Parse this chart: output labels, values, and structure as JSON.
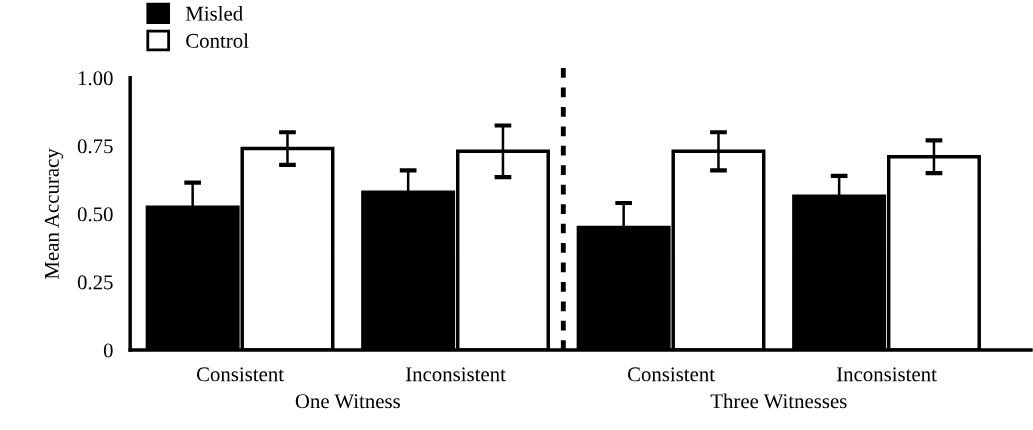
{
  "chart_data": {
    "type": "bar",
    "ylabel": "Mean Accuracy",
    "categories": [
      "Consistent",
      "Inconsistent",
      "Consistent",
      "Inconsistent"
    ],
    "series": [
      {
        "name": "Misled",
        "color": "#000000",
        "values": [
          0.525,
          0.58,
          0.45,
          0.565
        ],
        "errors": [
          0.09,
          0.08,
          0.09,
          0.075
        ]
      },
      {
        "name": "Control",
        "color": "#ffffff",
        "values": [
          0.74,
          0.73,
          0.73,
          0.71
        ],
        "errors": [
          0.06,
          0.095,
          0.07,
          0.06
        ]
      }
    ],
    "annotations": [
      "One Witness",
      "Three Witnesses"
    ],
    "ylim": [
      0,
      1.0
    ],
    "yticks": [
      0,
      {
        "value": 0.25,
        "label": "0.25"
      },
      {
        "value": 0.5,
        "label": "0.50"
      },
      {
        "value": 0.75,
        "label": "0.75"
      },
      {
        "value": 1.0,
        "label": "1.00"
      }
    ],
    "grid": false,
    "legend": "top left"
  }
}
